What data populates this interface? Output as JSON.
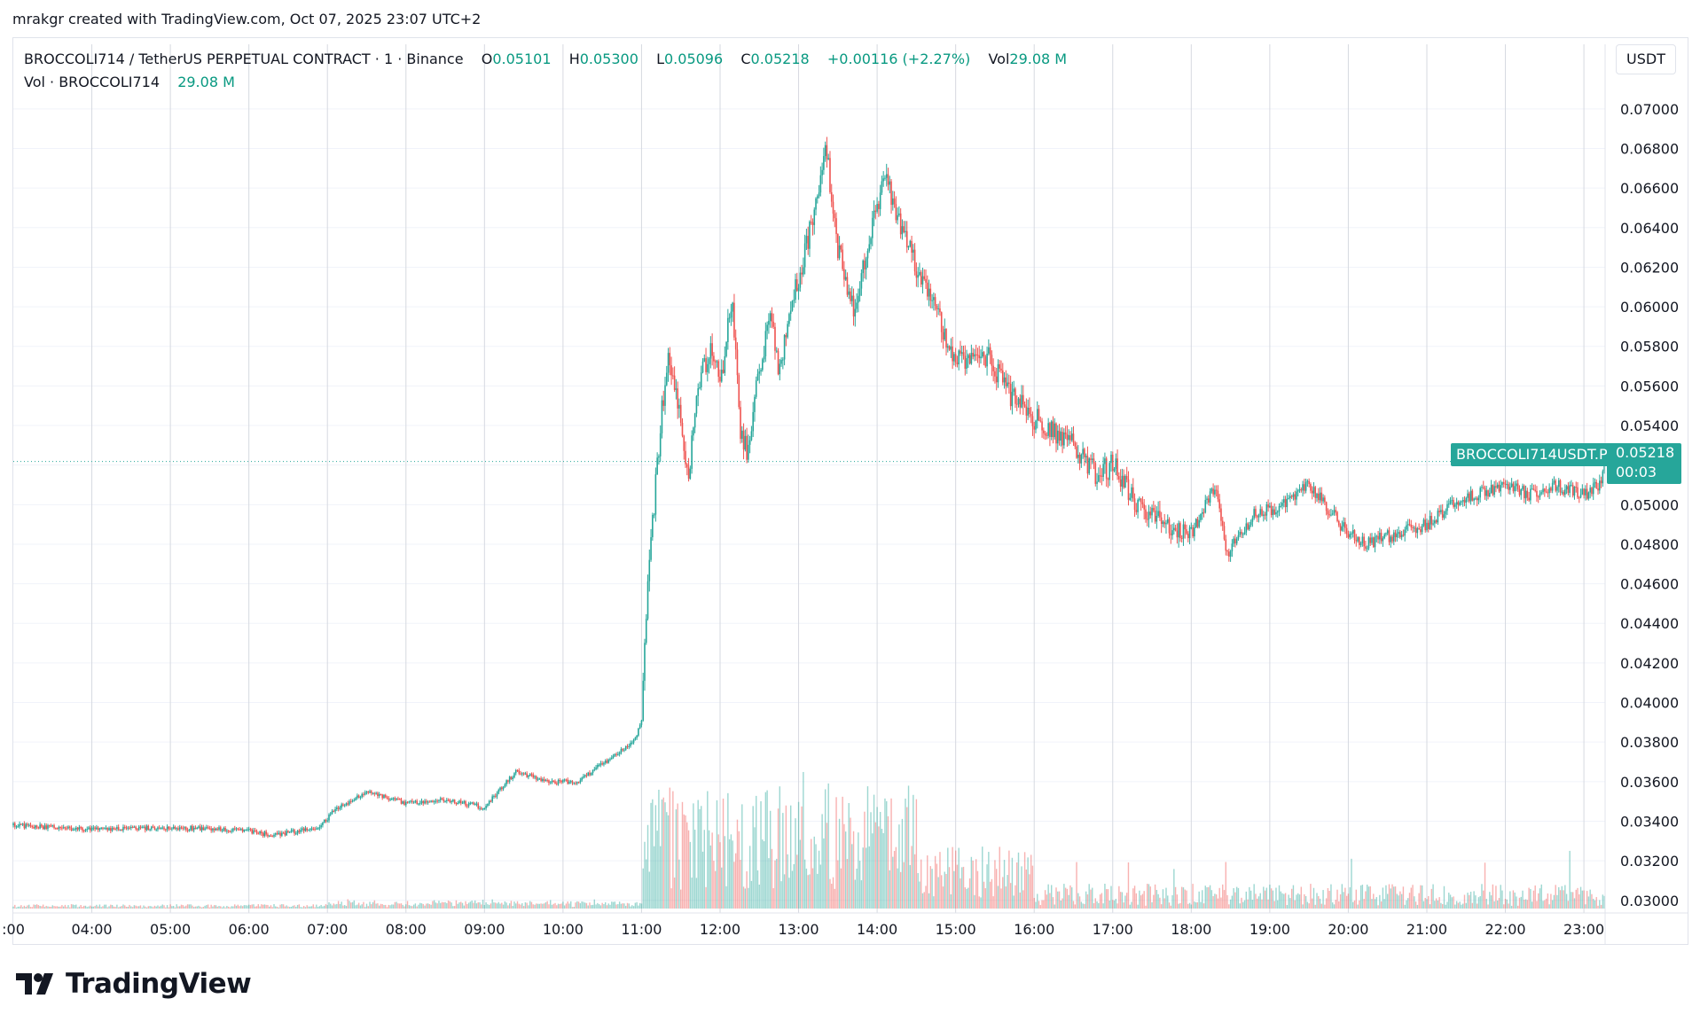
{
  "credit": "mrakgr created with TradingView.com, Oct 07, 2025 23:07 UTC+2",
  "legend": {
    "symbol": "BROCCOLI714 / TetherUS PERPETUAL CONTRACT · 1 · Binance",
    "open_label": "O",
    "open": "0.05101",
    "high_label": "H",
    "high": "0.05300",
    "low_label": "L",
    "low": "0.05096",
    "close_label": "C",
    "close": "0.05218",
    "change": "+0.00116 (+2.27%)",
    "vol_label": "Vol",
    "vol": "29.08 M",
    "vol_row_label": "Vol · BROCCOLI714",
    "vol_row_value": "29.08 M"
  },
  "unit": "USDT",
  "last_price": {
    "symbol": "BROCCOLI714USDT.P",
    "price": "0.05218",
    "countdown": "00:03"
  },
  "logo_text": "TradingView",
  "colors": {
    "up": "#26a69a",
    "down": "#ef5350",
    "grid": "#f0f3fa",
    "vgrid": "#d6d9e0",
    "text": "#131722",
    "dotted": "#26a69a"
  },
  "icons": {
    "logo": "tradingview-logo-icon"
  },
  "chart_data": {
    "type": "candlestick",
    "y_ticks": [
      "0.07000",
      "0.06800",
      "0.06600",
      "0.06400",
      "0.06200",
      "0.06000",
      "0.05800",
      "0.05600",
      "0.05400",
      "0.05200",
      "0.05000",
      "0.04800",
      "0.04600",
      "0.04400",
      "0.04200",
      "0.04000",
      "0.03800",
      "0.03600",
      "0.03400",
      "0.03200",
      "0.03000"
    ],
    "ylim": [
      0.0299,
      0.0708
    ],
    "x_ticks": [
      ":00",
      "04:00",
      "05:00",
      "06:00",
      "07:00",
      "08:00",
      "09:00",
      "10:00",
      "11:00",
      "12:00",
      "13:00",
      "14:00",
      "15:00",
      "16:00",
      "17:00",
      "18:00",
      "19:00",
      "20:00",
      "21:00",
      "22:00",
      "23:00"
    ],
    "x_tick_hours": [
      3,
      4,
      5,
      6,
      7,
      8,
      9,
      10,
      11,
      12,
      13,
      14,
      15,
      16,
      17,
      18,
      19,
      20,
      21,
      22,
      23
    ],
    "xlim_hours": [
      3.0,
      23.27
    ],
    "price_path": [
      [
        3.0,
        0.0338
      ],
      [
        4.0,
        0.0336
      ],
      [
        5.0,
        0.0337
      ],
      [
        6.0,
        0.0335
      ],
      [
        6.3,
        0.0333
      ],
      [
        6.9,
        0.0337
      ],
      [
        7.1,
        0.0346
      ],
      [
        7.5,
        0.0355
      ],
      [
        8.0,
        0.0349
      ],
      [
        8.5,
        0.0351
      ],
      [
        9.0,
        0.0347
      ],
      [
        9.4,
        0.0365
      ],
      [
        9.8,
        0.036
      ],
      [
        10.2,
        0.036
      ],
      [
        10.5,
        0.0369
      ],
      [
        10.9,
        0.038
      ],
      [
        11.0,
        0.039
      ],
      [
        11.05,
        0.044
      ],
      [
        11.15,
        0.0495
      ],
      [
        11.25,
        0.0545
      ],
      [
        11.35,
        0.0575
      ],
      [
        11.5,
        0.054
      ],
      [
        11.6,
        0.051
      ],
      [
        11.7,
        0.056
      ],
      [
        11.9,
        0.058
      ],
      [
        12.0,
        0.056
      ],
      [
        12.15,
        0.0605
      ],
      [
        12.25,
        0.054
      ],
      [
        12.35,
        0.0525
      ],
      [
        12.5,
        0.057
      ],
      [
        12.65,
        0.0595
      ],
      [
        12.75,
        0.0565
      ],
      [
        12.85,
        0.059
      ],
      [
        13.0,
        0.0615
      ],
      [
        13.15,
        0.064
      ],
      [
        13.35,
        0.068
      ],
      [
        13.5,
        0.063
      ],
      [
        13.7,
        0.06
      ],
      [
        13.85,
        0.0625
      ],
      [
        14.1,
        0.0665
      ],
      [
        14.3,
        0.064
      ],
      [
        14.5,
        0.062
      ],
      [
        14.7,
        0.0605
      ],
      [
        14.9,
        0.058
      ],
      [
        15.15,
        0.057
      ],
      [
        15.4,
        0.0575
      ],
      [
        15.7,
        0.0555
      ],
      [
        15.95,
        0.0545
      ],
      [
        16.3,
        0.0535
      ],
      [
        16.5,
        0.053
      ],
      [
        16.8,
        0.0515
      ],
      [
        17.0,
        0.052
      ],
      [
        17.3,
        0.05
      ],
      [
        17.7,
        0.049
      ],
      [
        18.0,
        0.0485
      ],
      [
        18.3,
        0.051
      ],
      [
        18.45,
        0.0475
      ],
      [
        18.8,
        0.0495
      ],
      [
        19.2,
        0.05
      ],
      [
        19.5,
        0.051
      ],
      [
        19.9,
        0.049
      ],
      [
        20.2,
        0.048
      ],
      [
        20.6,
        0.0485
      ],
      [
        21.0,
        0.049
      ],
      [
        21.3,
        0.05
      ],
      [
        21.6,
        0.0505
      ],
      [
        22.0,
        0.051
      ],
      [
        22.3,
        0.0505
      ],
      [
        22.6,
        0.051
      ],
      [
        23.0,
        0.0505
      ],
      [
        23.2,
        0.051
      ],
      [
        23.27,
        0.0522
      ]
    ],
    "volume": {
      "max_label": "29.08 M"
    }
  }
}
